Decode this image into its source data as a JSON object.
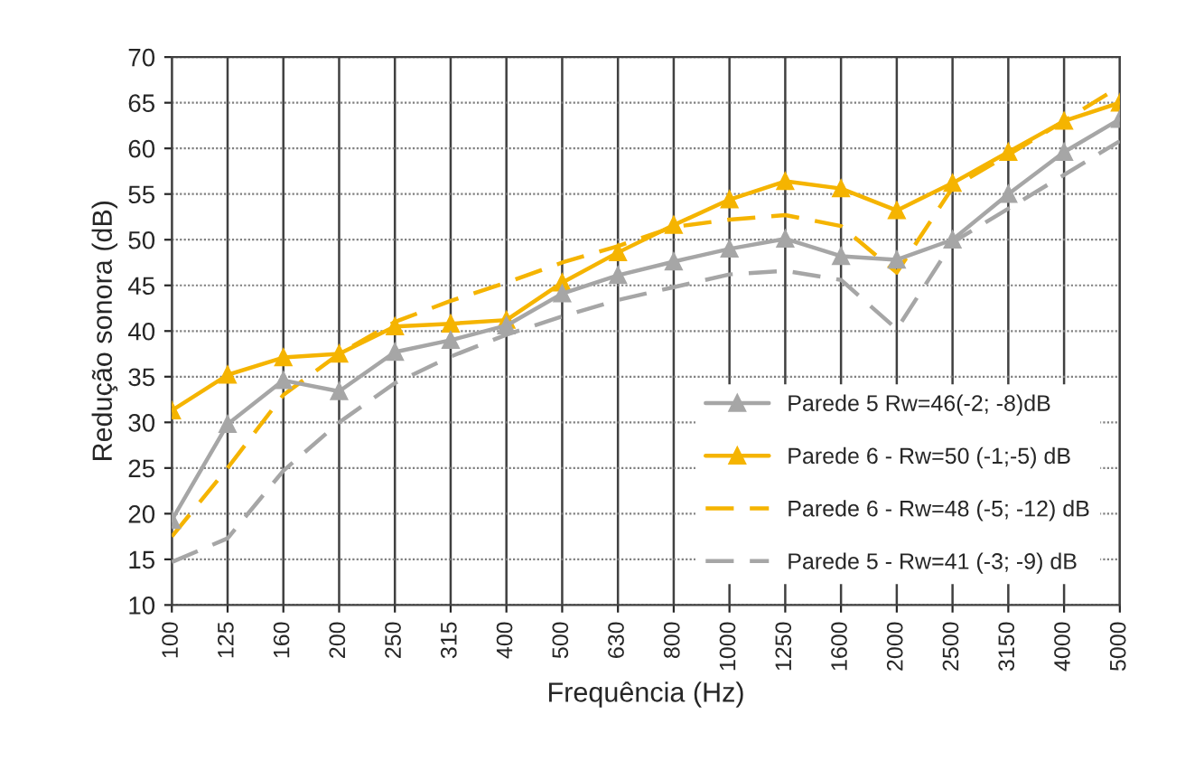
{
  "chart_data": {
    "type": "line",
    "xlabel": "Frequência (Hz)",
    "ylabel": "Redução sonora (dB)",
    "categories": [
      "100",
      "125",
      "160",
      "200",
      "250",
      "315",
      "400",
      "500",
      "630",
      "800",
      "1000",
      "1250",
      "1600",
      "2000",
      "2500",
      "3150",
      "4000",
      "5000"
    ],
    "ylim": [
      10,
      70
    ],
    "yticks": [
      10,
      15,
      20,
      25,
      30,
      35,
      40,
      45,
      50,
      55,
      60,
      65,
      70
    ],
    "grid": true,
    "legend": "bottom right",
    "series": [
      {
        "name": "Parede 5 Rw=46(-2; -8)dB",
        "color": "#a6a6a6",
        "marker": "triangle",
        "line_style": "solid",
        "values": [
          19.3,
          29.8,
          34.6,
          33.4,
          37.7,
          39,
          40.6,
          44.1,
          46.1,
          47.6,
          49,
          50.1,
          48.2,
          47.8,
          50,
          55,
          59.6,
          63.2
        ]
      },
      {
        "name": "Parede 6 - Rw=50 (-1;-5) dB",
        "color": "#f5b400",
        "marker": "triangle",
        "line_style": "solid",
        "values": [
          31.3,
          35.2,
          37.1,
          37.5,
          40.5,
          40.8,
          41.2,
          45.3,
          48.6,
          51.6,
          54.4,
          56.4,
          55.6,
          53.2,
          56.2,
          59.6,
          63,
          65
        ]
      },
      {
        "name": "Parede 6 - Rw=48 (-5; -12) dB",
        "color": "#f5b400",
        "marker": "none",
        "line_style": "dashed",
        "values": [
          17.5,
          25,
          33,
          37.5,
          41,
          43.3,
          45.3,
          47.5,
          49.3,
          51.4,
          52.2,
          52.7,
          51.5,
          46.4,
          55.7,
          59.3,
          63,
          66.8
        ]
      },
      {
        "name": "Parede 5 - Rw=41 (-3; -9) dB",
        "color": "#a6a6a6",
        "marker": "none",
        "line_style": "dashed",
        "values": [
          14.7,
          17.3,
          24.7,
          30,
          34.3,
          37.2,
          39.6,
          41.6,
          43.4,
          44.8,
          46.2,
          46.6,
          45.6,
          40.2,
          49.7,
          53.4,
          57.1,
          60.8
        ]
      }
    ]
  }
}
